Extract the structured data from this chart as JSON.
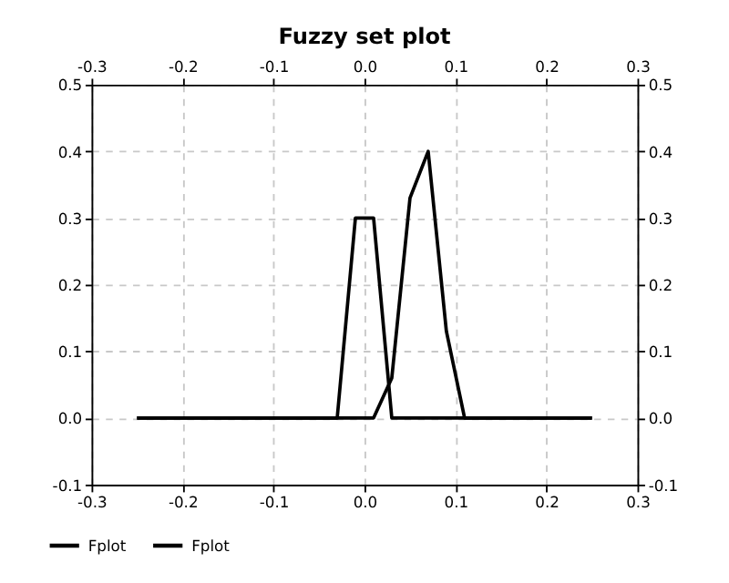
{
  "chart_data": {
    "type": "line",
    "title": "Fuzzy set plot",
    "series": [
      {
        "name": "Fplot",
        "color": "#000000",
        "x": [
          -0.25,
          -0.03,
          -0.01,
          0.01,
          0.03,
          0.25
        ],
        "values": [
          0,
          0,
          0.3,
          0.3,
          0,
          0
        ]
      },
      {
        "name": "Fplot",
        "color": "#000000",
        "x": [
          -0.25,
          0.01,
          0.03,
          0.05,
          0.07,
          0.09,
          0.11,
          0.25
        ],
        "values": [
          0,
          0,
          0.06,
          0.33,
          0.4,
          0.13,
          0,
          0
        ]
      }
    ],
    "xlim": [
      -0.3,
      0.3
    ],
    "xticks": [
      -0.3,
      -0.2,
      -0.1,
      {
        "value": 0,
        "label": "0.0"
      },
      0.1,
      0.2,
      0.3
    ],
    "x2lim": [
      -0.3,
      0.3
    ],
    "x2ticks": [
      -0.3,
      -0.2,
      -0.1,
      {
        "value": 0,
        "label": "0.0"
      },
      0.1,
      0.2,
      0.3
    ],
    "ylim": [
      -0.1,
      0.5
    ],
    "yticks": [
      -0.1,
      {
        "value": 0,
        "label": "0.0"
      },
      0.1,
      0.2,
      0.3,
      0.4,
      0.5
    ],
    "y2lim": [
      -0.1,
      0.5
    ],
    "y2ticks": [
      -0.1,
      {
        "value": 0,
        "label": "0.0"
      },
      0.1,
      0.2,
      0.3,
      0.4,
      0.5
    ],
    "grid": true,
    "legend": "bottom left",
    "marker": "none",
    "line_style": "solid"
  }
}
